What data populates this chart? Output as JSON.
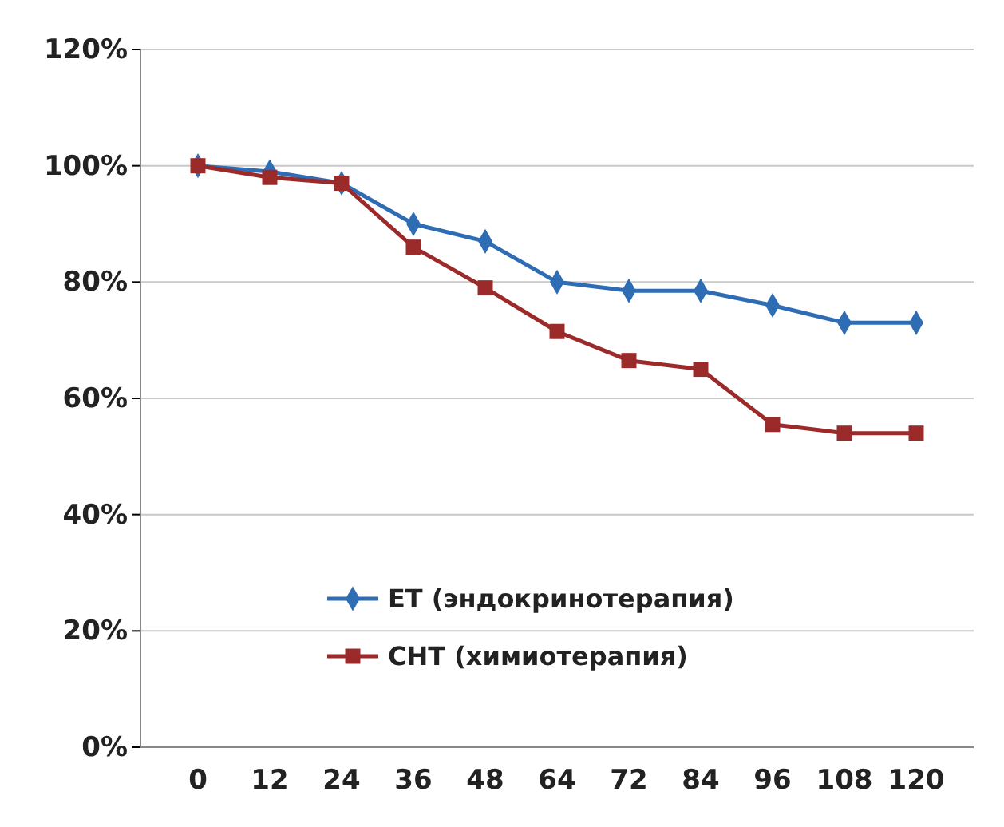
{
  "chart_data": {
    "type": "line",
    "categories": [
      "0",
      "12",
      "24",
      "36",
      "48",
      "64",
      "72",
      "84",
      "96",
      "108",
      "120"
    ],
    "series": [
      {
        "name": "ET (эндокринотерапия)",
        "color": "#2e6db4",
        "marker": "diamond",
        "values": [
          100,
          99,
          97,
          90,
          87,
          80,
          78.5,
          78.5,
          76,
          73,
          73
        ]
      },
      {
        "name": "CHT (химиотерапия)",
        "color": "#9b2b2b",
        "marker": "square",
        "values": [
          100,
          98,
          97,
          86,
          79,
          71.5,
          66.5,
          65,
          55.5,
          54,
          54
        ]
      }
    ],
    "ylim": [
      0,
      120
    ],
    "yticks": [
      {
        "value": 0,
        "label": "0%"
      },
      {
        "value": 20,
        "label": "20%"
      },
      {
        "value": 40,
        "label": "40%"
      },
      {
        "value": 60,
        "label": "60%"
      },
      {
        "value": 80,
        "label": "80%"
      },
      {
        "value": 100,
        "label": "100%"
      },
      {
        "value": 120,
        "label": "120%"
      }
    ],
    "grid": "y",
    "legend": "bottom",
    "line_style": "solid"
  }
}
